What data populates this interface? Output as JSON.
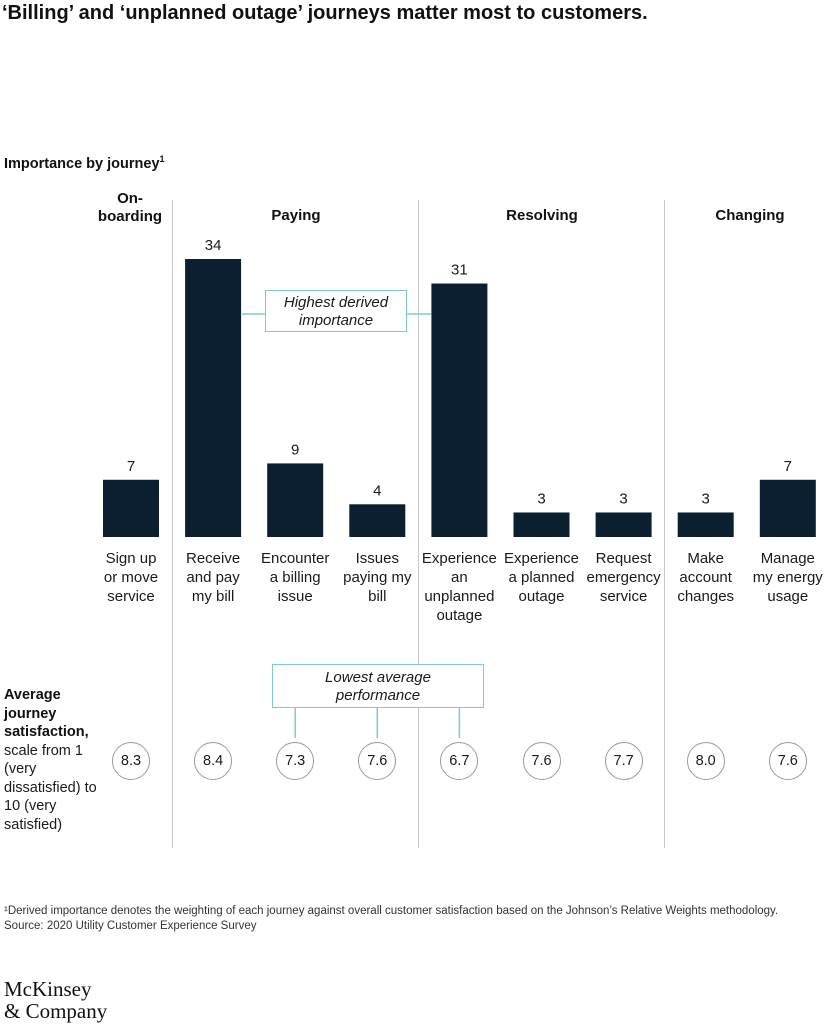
{
  "title": "‘Billing’ and ‘unplanned outage’ journeys matter most to customers.",
  "importance_label": "Importance by journey",
  "importance_footnote_marker": "1",
  "groups": [
    {
      "label": "On-\nboarding"
    },
    {
      "label": "Paying"
    },
    {
      "label": "Resolving"
    },
    {
      "label": "Changing"
    }
  ],
  "callouts": {
    "highest": "Highest derived\nimportance",
    "lowest": "Lowest average\nperformance"
  },
  "avg_label_bold": "Average journey satisfaction,",
  "avg_label_rest": " scale from 1 (very dissatisfied) to 10 (very satisfied)",
  "footnote": "¹Derived importance denotes the weighting of each journey against overall customer satisfaction based on the Johnson’s Relative Weights methodology.",
  "source": " Source: 2020 Utility Customer Experience Survey",
  "logo": "McKinsey\n& Company",
  "colors": {
    "bar": "#0b1f30",
    "callout_border": "#7fc8dc",
    "divider": "#c8c8c8"
  },
  "chart_data": {
    "type": "bar",
    "categories": [
      "Sign up or move service",
      "Receive and pay my bill",
      "Encounter a billing issue",
      "Issues paying my bill",
      "Experience an unplanned outage",
      "Experience a planned outage",
      "Request emergency service",
      "Make account changes",
      "Manage my energy usage"
    ],
    "category_labels": [
      "Sign up\nor move\nservice",
      "Receive\nand pay\nmy bill",
      "Encounter\na billing\nissue",
      "Issues\npaying my\nbill",
      "Experience\nan\nunplanned\noutage",
      "Experience\na planned\noutage",
      "Request\nemergency\nservice",
      "Make\naccount\nchanges",
      "Manage\nmy energy\nusage"
    ],
    "groups": [
      "Onboarding",
      "Paying",
      "Paying",
      "Paying",
      "Resolving",
      "Resolving",
      "Resolving",
      "Changing",
      "Changing"
    ],
    "values": [
      7,
      34,
      9,
      4,
      31,
      3,
      3,
      3,
      7
    ],
    "satisfaction": [
      "8.3",
      "8.4",
      "7.3",
      "7.6",
      "6.7",
      "7.6",
      "7.7",
      "8.0",
      "7.6"
    ],
    "ylim": [
      0,
      34
    ],
    "highest_importance_indices": [
      1,
      4
    ],
    "lowest_performance_indices": [
      2,
      3,
      4
    ]
  }
}
